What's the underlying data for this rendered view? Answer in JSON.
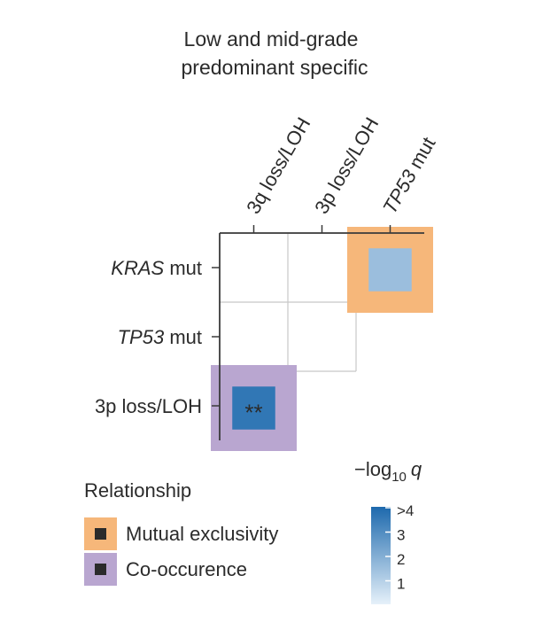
{
  "chart_data": {
    "type": "heatmap",
    "title": [
      "Low and mid-grade",
      "predominant specific"
    ],
    "columns": [
      {
        "pre": "3q loss/LOH",
        "it": "",
        "post": ""
      },
      {
        "pre": "3p loss/LOH",
        "it": "",
        "post": ""
      },
      {
        "pre": "",
        "it": "TP53",
        "post": " mut"
      }
    ],
    "rows": [
      {
        "pre": "",
        "it": "KRAS",
        "post": " mut"
      },
      {
        "pre": "",
        "it": "TP53",
        "post": " mut"
      },
      {
        "pre": "3p loss/LOH",
        "it": "",
        "post": ""
      }
    ],
    "cells": [
      {
        "row": 0,
        "col": 2,
        "relationship": "Mutual exclusivity",
        "neg_log10_q": 1.5,
        "label": ""
      },
      {
        "row": 2,
        "col": 0,
        "relationship": "Co-occurence",
        "neg_log10_q": 3.6,
        "label": "**"
      }
    ],
    "legend": {
      "title": "Relationship",
      "items": [
        {
          "label": "Mutual exclusivity",
          "color": "#f6b77a"
        },
        {
          "label": "Co-occurence",
          "color": "#b9a6d0"
        }
      ]
    },
    "colorbar": {
      "title_pre": "−log",
      "title_sub": "10",
      "title_var": "q",
      "ticks": [
        {
          "label": ">4",
          "value": 4
        },
        {
          "label": "3",
          "value": 3
        },
        {
          "label": "2",
          "value": 2
        },
        {
          "label": "1",
          "value": 1
        }
      ],
      "range": [
        0,
        4
      ],
      "color_low": "#e6f1fa",
      "color_high": "#1d69ad"
    },
    "colors": {
      "grid": "#c8c8c8",
      "axis": "#3a3a3a",
      "text": "#2b2b2b",
      "legend_square": "#2b2b2b"
    }
  }
}
